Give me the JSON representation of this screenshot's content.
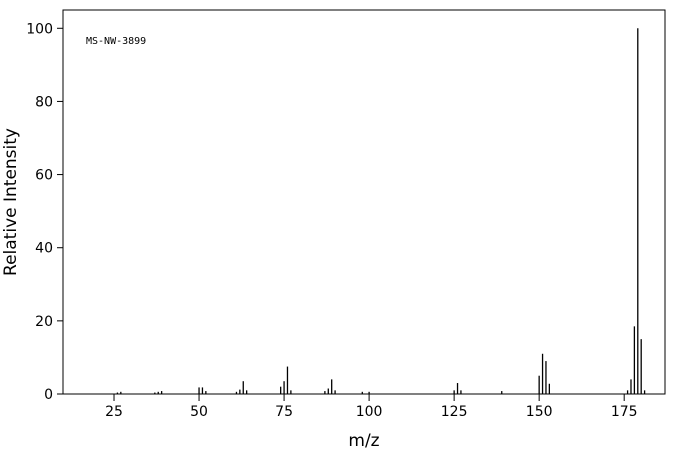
{
  "chart_data": {
    "type": "spectrum",
    "annotation": "MS-NW-3899",
    "x_label": "m/z",
    "y_label": "Relative Intensity",
    "x": [
      26,
      27,
      37,
      38,
      39,
      50,
      51,
      52,
      61,
      62,
      63,
      64,
      74,
      75,
      76,
      77,
      87,
      88,
      89,
      90,
      98,
      100,
      125,
      126,
      127,
      139,
      150,
      151,
      152,
      153,
      176,
      177,
      178,
      179,
      180,
      181
    ],
    "values": [
      0.4,
      0.6,
      0.4,
      0.6,
      0.8,
      1.8,
      1.8,
      0.8,
      0.6,
      1.2,
      3.5,
      1.0,
      2.0,
      3.5,
      7.5,
      1.0,
      0.8,
      1.5,
      4.0,
      1.0,
      0.6,
      0.6,
      1.0,
      3.0,
      1.0,
      0.8,
      5.0,
      11.0,
      9.0,
      2.8,
      1.0,
      4.0,
      18.5,
      100,
      15.0,
      1.0
    ],
    "color": "#000000",
    "xlim": [
      10,
      187
    ],
    "ylim": [
      0,
      105
    ],
    "xticks": [
      25,
      50,
      75,
      100,
      125,
      150,
      175
    ],
    "yticks": [
      0,
      20,
      40,
      60,
      80,
      100
    ]
  }
}
